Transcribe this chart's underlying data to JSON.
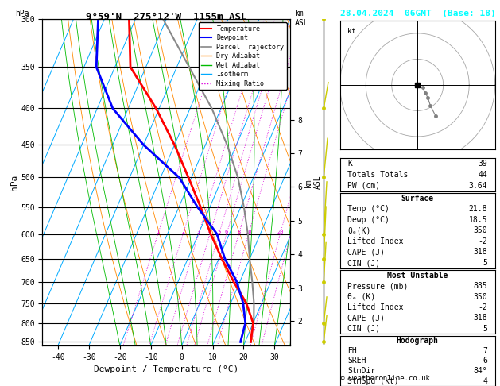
{
  "title_left": "9°59'N  275°12'W  1155m ASL",
  "title_right": "28.04.2024  06GMT  (Base: 18)",
  "xlabel": "Dewpoint / Temperature (°C)",
  "ylabel_left": "hPa",
  "pressure_major": [
    300,
    350,
    400,
    450,
    500,
    550,
    600,
    650,
    700,
    750,
    800,
    850
  ],
  "temp_range": [
    -45,
    35
  ],
  "isotherm_color": "#00aaff",
  "dryadiabat_color": "#ff8800",
  "wetadiabat_color": "#00bb00",
  "mixratio_color": "#dd00dd",
  "temp_color": "#ff0000",
  "dewpoint_color": "#0000ff",
  "parcel_color": "#888888",
  "km_ticks": [
    2,
    3,
    4,
    5,
    6,
    7,
    8
  ],
  "km_pressures": [
    795,
    715,
    640,
    575,
    515,
    462,
    415
  ],
  "lcl_pressure": 849,
  "info_right": {
    "K": 39,
    "TotTot": 44,
    "PW": "3.64",
    "surface_temp": "21.8",
    "surface_dewp": "18.5",
    "surface_thetae": 350,
    "lifted_index": -2,
    "cape": 318,
    "cin": 5,
    "mu_pressure": 885,
    "mu_thetae": 350,
    "mu_li": -2,
    "mu_cape": 318,
    "mu_cin": 5,
    "EH": 7,
    "SREH": 6,
    "StmDir": "84°",
    "StmSpd": 4
  },
  "temp_profile_T": [
    21.8,
    20.0,
    15.0,
    8.0,
    1.0,
    -6.0,
    -13.0,
    -21.0,
    -30.0,
    -41.0,
    -55.0,
    -62.0
  ],
  "temp_profile_P": [
    850,
    800,
    750,
    700,
    650,
    600,
    550,
    500,
    450,
    400,
    350,
    300
  ],
  "dewp_profile_T": [
    18.5,
    17.5,
    14.0,
    9.0,
    2.0,
    -4.0,
    -14.0,
    -24.0,
    -40.0,
    -55.0,
    -66.0,
    -72.0
  ],
  "dewp_profile_P": [
    850,
    800,
    750,
    700,
    650,
    600,
    550,
    500,
    450,
    400,
    350,
    300
  ],
  "parcel_profile_T": [
    21.8,
    20.2,
    17.5,
    14.0,
    10.0,
    6.0,
    1.0,
    -5.0,
    -13.0,
    -23.0,
    -36.0,
    -51.0
  ],
  "parcel_profile_P": [
    850,
    800,
    750,
    700,
    650,
    600,
    550,
    500,
    450,
    400,
    350,
    300
  ],
  "wind_levels_p": [
    850,
    800,
    700,
    650,
    600,
    500,
    400,
    300
  ],
  "wind_u": [
    4,
    4,
    3,
    3,
    4,
    5,
    6,
    6
  ],
  "wind_v": [
    2,
    2,
    3,
    4,
    4,
    3,
    2,
    2
  ]
}
